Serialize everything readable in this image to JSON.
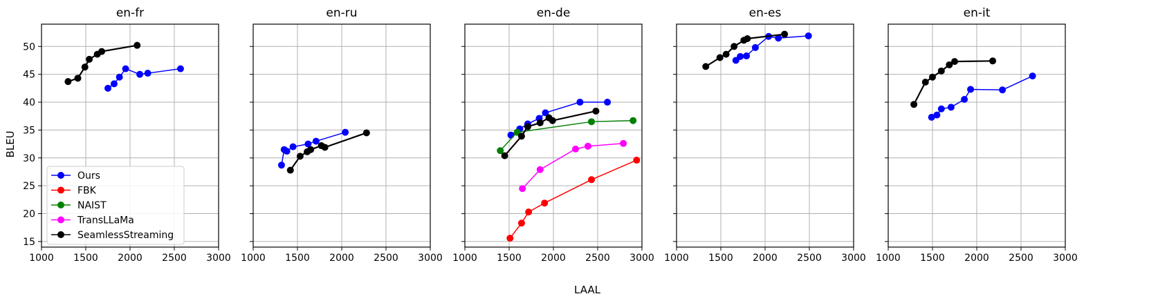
{
  "figure": {
    "ylabel": "BLEU",
    "xlabel": "LAAL",
    "legend": [
      {
        "name": "Ours",
        "color": "#0000ff"
      },
      {
        "name": "FBK",
        "color": "#ff0000"
      },
      {
        "name": "NAIST",
        "color": "#008000"
      },
      {
        "name": "TransLLaMa",
        "color": "#ff00ff"
      },
      {
        "name": "SeamlessStreaming",
        "color": "#000000"
      }
    ],
    "legend_location": "lower-left of first panel"
  },
  "chart_data": [
    {
      "type": "line",
      "title": "en-fr",
      "xlim": [
        1000,
        3000
      ],
      "ylim": [
        14,
        54
      ],
      "xticks": [
        1000,
        1500,
        2000,
        2500,
        3000
      ],
      "yticks": [
        15,
        20,
        25,
        30,
        35,
        40,
        45,
        50
      ],
      "grid": true,
      "series": [
        {
          "name": "Ours",
          "color": "#0000ff",
          "points": [
            [
              1750,
              42.5
            ],
            [
              1820,
              43.3
            ],
            [
              1880,
              44.5
            ],
            [
              1950,
              46.0
            ],
            [
              2110,
              45.0
            ],
            [
              2200,
              45.2
            ],
            [
              2570,
              46.0
            ]
          ]
        },
        {
          "name": "SeamlessStreaming",
          "color": "#000000",
          "points": [
            [
              1300,
              43.7
            ],
            [
              1410,
              44.3
            ],
            [
              1490,
              46.3
            ],
            [
              1540,
              47.7
            ],
            [
              1630,
              48.6
            ],
            [
              1680,
              49.1
            ],
            [
              2080,
              50.2
            ]
          ]
        }
      ]
    },
    {
      "type": "line",
      "title": "en-ru",
      "xlim": [
        1000,
        3000
      ],
      "ylim": [
        14,
        54
      ],
      "xticks": [
        1000,
        1500,
        2000,
        2500,
        3000
      ],
      "yticks": [
        15,
        20,
        25,
        30,
        35,
        40,
        45,
        50
      ],
      "grid": true,
      "series": [
        {
          "name": "Ours",
          "color": "#0000ff",
          "points": [
            [
              1320,
              28.7
            ],
            [
              1350,
              31.5
            ],
            [
              1380,
              31.2
            ],
            [
              1450,
              32.0
            ],
            [
              1620,
              32.5
            ],
            [
              1710,
              33.0
            ],
            [
              2040,
              34.6
            ]
          ]
        },
        {
          "name": "SeamlessStreaming",
          "color": "#000000",
          "points": [
            [
              1420,
              27.8
            ],
            [
              1530,
              30.3
            ],
            [
              1610,
              31.1
            ],
            [
              1650,
              31.5
            ],
            [
              1770,
              32.2
            ],
            [
              1810,
              31.9
            ],
            [
              2280,
              34.5
            ]
          ]
        }
      ]
    },
    {
      "type": "line",
      "title": "en-de",
      "xlim": [
        1000,
        3000
      ],
      "ylim": [
        14,
        54
      ],
      "xticks": [
        1000,
        1500,
        2000,
        2500,
        3000
      ],
      "yticks": [
        15,
        20,
        25,
        30,
        35,
        40,
        45,
        50
      ],
      "grid": true,
      "series": [
        {
          "name": "Ours",
          "color": "#0000ff",
          "points": [
            [
              1520,
              34.1
            ],
            [
              1620,
              35.2
            ],
            [
              1710,
              36.1
            ],
            [
              1840,
              37.1
            ],
            [
              1910,
              38.1
            ],
            [
              2300,
              40.0
            ],
            [
              2610,
              40.0
            ]
          ]
        },
        {
          "name": "FBK",
          "color": "#ff0000",
          "points": [
            [
              1510,
              15.6
            ],
            [
              1640,
              18.3
            ],
            [
              1720,
              20.3
            ],
            [
              1900,
              21.9
            ],
            [
              2430,
              26.1
            ],
            [
              2940,
              29.6
            ]
          ]
        },
        {
          "name": "NAIST",
          "color": "#008000",
          "points": [
            [
              1400,
              31.3
            ],
            [
              1590,
              34.6
            ],
            [
              2430,
              36.5
            ],
            [
              2900,
              36.7
            ]
          ]
        },
        {
          "name": "TransLLaMa",
          "color": "#ff00ff",
          "points": [
            [
              1650,
              24.5
            ],
            [
              1850,
              27.9
            ],
            [
              2250,
              31.6
            ],
            [
              2390,
              32.1
            ],
            [
              2790,
              32.6
            ]
          ]
        },
        {
          "name": "SeamlessStreaming",
          "color": "#000000",
          "points": [
            [
              1450,
              30.4
            ],
            [
              1640,
              33.9
            ],
            [
              1710,
              35.6
            ],
            [
              1850,
              36.3
            ],
            [
              1950,
              37.2
            ],
            [
              1990,
              36.7
            ],
            [
              2480,
              38.4
            ]
          ]
        }
      ]
    },
    {
      "type": "line",
      "title": "en-es",
      "xlim": [
        1000,
        3000
      ],
      "ylim": [
        14,
        54
      ],
      "xticks": [
        1000,
        1500,
        2000,
        2500,
        3000
      ],
      "yticks": [
        15,
        20,
        25,
        30,
        35,
        40,
        45,
        50
      ],
      "grid": true,
      "series": [
        {
          "name": "Ours",
          "color": "#0000ff",
          "points": [
            [
              1670,
              47.5
            ],
            [
              1720,
              48.2
            ],
            [
              1790,
              48.3
            ],
            [
              1890,
              49.8
            ],
            [
              2040,
              51.8
            ],
            [
              2150,
              51.5
            ],
            [
              2490,
              51.9
            ]
          ]
        },
        {
          "name": "SeamlessStreaming",
          "color": "#000000",
          "points": [
            [
              1330,
              46.4
            ],
            [
              1490,
              48.0
            ],
            [
              1560,
              48.6
            ],
            [
              1650,
              50.0
            ],
            [
              1760,
              51.1
            ],
            [
              1800,
              51.4
            ],
            [
              2220,
              52.2
            ]
          ]
        }
      ]
    },
    {
      "type": "line",
      "title": "en-it",
      "xlim": [
        1000,
        3000
      ],
      "ylim": [
        14,
        54
      ],
      "xticks": [
        1000,
        1500,
        2000,
        2500,
        3000
      ],
      "yticks": [
        15,
        20,
        25,
        30,
        35,
        40,
        45,
        50
      ],
      "grid": true,
      "series": [
        {
          "name": "Ours",
          "color": "#0000ff",
          "points": [
            [
              1490,
              37.3
            ],
            [
              1550,
              37.7
            ],
            [
              1600,
              38.8
            ],
            [
              1710,
              39.1
            ],
            [
              1860,
              40.5
            ],
            [
              1930,
              42.3
            ],
            [
              2290,
              42.2
            ],
            [
              2630,
              44.7
            ]
          ]
        },
        {
          "name": "SeamlessStreaming",
          "color": "#000000",
          "points": [
            [
              1290,
              39.6
            ],
            [
              1420,
              43.6
            ],
            [
              1500,
              44.5
            ],
            [
              1600,
              45.6
            ],
            [
              1690,
              46.7
            ],
            [
              1750,
              47.3
            ],
            [
              2180,
              47.4
            ]
          ]
        }
      ]
    }
  ]
}
